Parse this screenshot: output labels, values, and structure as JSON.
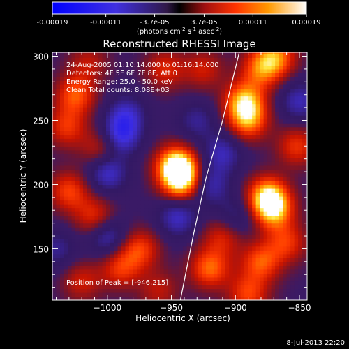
{
  "colorbar": {
    "tick_labels": [
      "-0.00019",
      "-0.00011",
      "-3.7e-05",
      "3.7e-05",
      "0.00011",
      "0.00019"
    ],
    "tick_values": [
      -0.00019,
      -0.00011,
      -3.7e-05,
      3.7e-05,
      0.00011,
      0.00019
    ],
    "range": [
      -0.00019,
      0.00019
    ],
    "units_main": "(photons cm",
    "units_sup1": "-2",
    "units_mid1": " s",
    "units_sup2": "-1",
    "units_mid2": " asec",
    "units_sup3": "-2",
    "units_end": ")"
  },
  "chart_data": {
    "type": "heatmap",
    "title": "Reconstructed RHESSI Image",
    "xlabel": "Heliocentric X (arcsec)",
    "ylabel": "Heliocentric Y (arcsec)",
    "xlim": [
      -1043,
      -844
    ],
    "ylim": [
      110,
      303
    ],
    "x_ticks": [
      -1000,
      -950,
      -900,
      -850
    ],
    "x_tick_labels": [
      "−1000",
      "−950",
      "−900",
      "−850"
    ],
    "y_ticks": [
      150,
      200,
      250,
      300
    ],
    "y_tick_labels": [
      "150",
      "200",
      "250",
      "300"
    ],
    "annotations": [
      "24-Aug-2005 01:10:14.000 to 01:16:14.000",
      "Detectors: 4F 5F 6F 7F 8F, Att 0",
      "Energy Range: 25.0 - 50.0 keV",
      "Clean    Total counts: 8.08E+03"
    ],
    "peak_label": "Position of Peak = [-946,215]",
    "peak": [
      -946,
      215
    ],
    "sources": [
      {
        "x": -946,
        "y": 215,
        "value": 0.00019
      },
      {
        "x": -942,
        "y": 203,
        "value": 0.00016
      },
      {
        "x": -875,
        "y": 191,
        "value": 0.00016
      },
      {
        "x": -870,
        "y": 180,
        "value": 0.00013
      },
      {
        "x": -893,
        "y": 265,
        "value": 0.00015
      },
      {
        "x": -890,
        "y": 250,
        "value": 0.00012
      },
      {
        "x": -880,
        "y": 290,
        "value": 0.00011
      },
      {
        "x": -868,
        "y": 300,
        "value": 0.00012
      },
      {
        "x": -1025,
        "y": 270,
        "value": 0.00011
      },
      {
        "x": -1032,
        "y": 245,
        "value": 9e-05
      },
      {
        "x": -1005,
        "y": 228,
        "value": 8e-05
      },
      {
        "x": -1010,
        "y": 175,
        "value": 9e-05
      },
      {
        "x": -1030,
        "y": 195,
        "value": 0.0001
      },
      {
        "x": -975,
        "y": 150,
        "value": 0.0001
      },
      {
        "x": -990,
        "y": 135,
        "value": 9e-05
      },
      {
        "x": -920,
        "y": 135,
        "value": 0.00012
      },
      {
        "x": -910,
        "y": 160,
        "value": 8e-05
      },
      {
        "x": -880,
        "y": 140,
        "value": 0.00011
      },
      {
        "x": -860,
        "y": 155,
        "value": 9e-05
      },
      {
        "x": -890,
        "y": 115,
        "value": 0.0001
      },
      {
        "x": -955,
        "y": 290,
        "value": 8e-05
      },
      {
        "x": -925,
        "y": 290,
        "value": 7e-05
      },
      {
        "x": -960,
        "y": 118,
        "value": 6e-05
      },
      {
        "x": -1020,
        "y": 125,
        "value": 7e-05
      },
      {
        "x": -852,
        "y": 230,
        "value": 9e-05
      },
      {
        "x": -1015,
        "y": 295,
        "value": 6e-05
      },
      {
        "x": -990,
        "y": 238,
        "value": -0.00011
      },
      {
        "x": -1000,
        "y": 210,
        "value": -0.0001
      },
      {
        "x": -985,
        "y": 255,
        "value": -8e-05
      },
      {
        "x": -1000,
        "y": 160,
        "value": -9e-05
      },
      {
        "x": -945,
        "y": 175,
        "value": -9e-05
      },
      {
        "x": -920,
        "y": 200,
        "value": -8e-05
      },
      {
        "x": -910,
        "y": 225,
        "value": -8e-05
      },
      {
        "x": -850,
        "y": 265,
        "value": -8e-05
      },
      {
        "x": -1040,
        "y": 150,
        "value": -6e-05
      },
      {
        "x": -900,
        "y": 175,
        "value": -6e-05
      },
      {
        "x": -930,
        "y": 250,
        "value": -6e-05
      }
    ],
    "limb_line": [
      [
        -943,
        110
      ],
      [
        -933,
        160
      ],
      [
        -923,
        205
      ],
      [
        -910,
        250
      ],
      [
        -897,
        303
      ]
    ],
    "limb_color": "#ffffff"
  },
  "footer": {
    "timestamp": "8-Jul-2013 22:20"
  }
}
